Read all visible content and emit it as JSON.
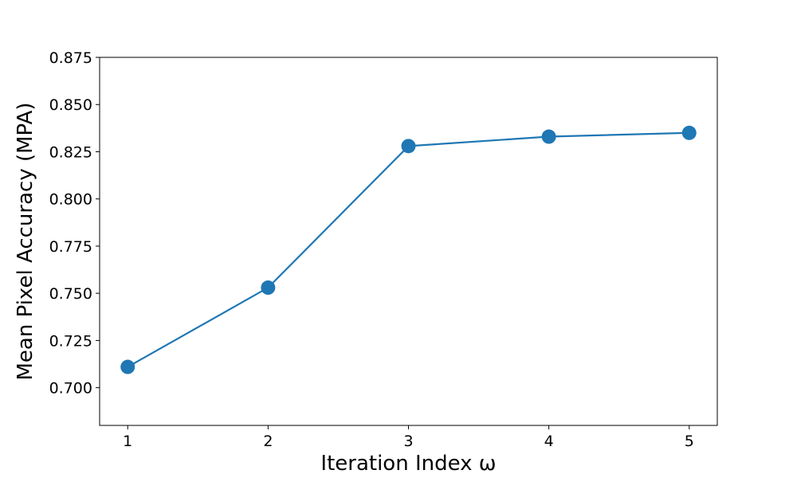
{
  "chart_data": {
    "type": "line",
    "title": "",
    "xlabel": "Iteration Index ω",
    "ylabel": "Mean Pixel Accuracy (MPA)",
    "xlim": [
      0.8,
      5.2
    ],
    "ylim": [
      0.68,
      0.875
    ],
    "x_ticks": [
      "1",
      "2",
      "3",
      "4",
      "5"
    ],
    "y_ticks": [
      "0.700",
      "0.725",
      "0.750",
      "0.775",
      "0.800",
      "0.825",
      "0.850",
      "0.875"
    ],
    "grid": false,
    "legend": "none",
    "series": [
      {
        "color": "#1f77b4",
        "x": [
          1,
          2,
          3,
          4,
          5
        ],
        "y": [
          0.711,
          0.753,
          0.828,
          0.833,
          0.835
        ]
      }
    ]
  }
}
